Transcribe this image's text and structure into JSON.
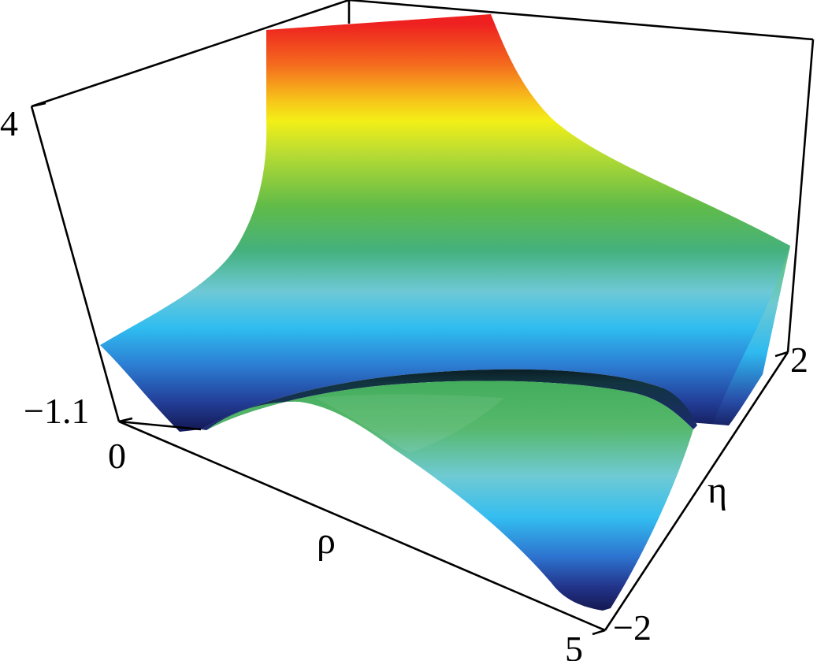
{
  "chart_data": {
    "type": "surface3d",
    "title": "",
    "axes": {
      "x": {
        "label": "ρ",
        "range": [
          0,
          5
        ],
        "ticks": [
          "0",
          "5"
        ]
      },
      "y": {
        "label": "η",
        "range": [
          -2,
          2
        ],
        "ticks": [
          "−2",
          "2"
        ]
      },
      "z": {
        "label": "",
        "range": [
          -1.1,
          4
        ],
        "ticks": [
          "−1.1",
          "4"
        ]
      }
    },
    "colormap": [
      "#1a1f6e",
      "#2b5cc7",
      "#31bdf0",
      "#6ccfd8",
      "#4db86a",
      "#6bc04a",
      "#c4df2d",
      "#f4ef15",
      "#f7a21b",
      "#ee2f22"
    ],
    "grid": false,
    "legend": "none"
  }
}
